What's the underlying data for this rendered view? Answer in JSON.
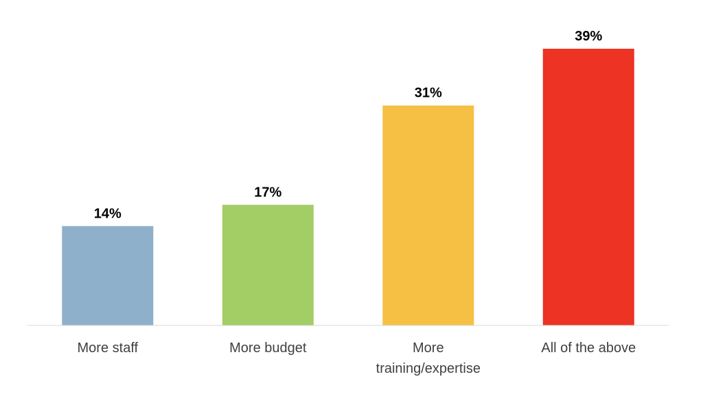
{
  "chart_data": {
    "type": "bar",
    "categories": [
      "More staff",
      "More budget",
      "More training/expertise",
      "All of the above"
    ],
    "category_lines": [
      [
        "More staff"
      ],
      [
        "More budget"
      ],
      [
        "More",
        "training/expertise"
      ],
      [
        "All of the above"
      ]
    ],
    "values": [
      14,
      17,
      31,
      39
    ],
    "data_labels": [
      "14%",
      "17%",
      "31%",
      "39%"
    ],
    "unit": "%",
    "colors": [
      "#8FB0CA",
      "#A3CD65",
      "#F5C044",
      "#EC3324"
    ],
    "title": "",
    "xlabel": "",
    "ylabel": "",
    "ylim": [
      0,
      45
    ],
    "grid": false,
    "legend": "none"
  }
}
